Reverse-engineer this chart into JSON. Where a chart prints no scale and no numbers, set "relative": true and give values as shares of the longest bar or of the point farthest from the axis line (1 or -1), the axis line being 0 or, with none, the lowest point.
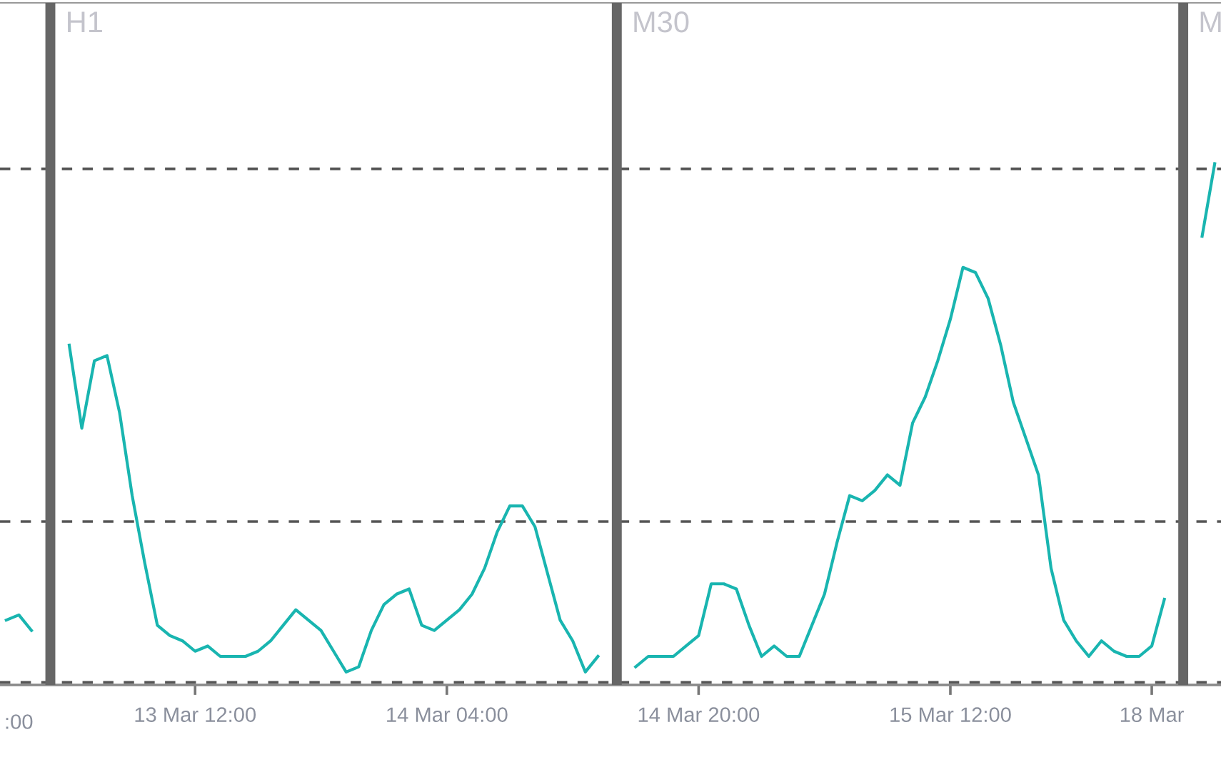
{
  "chart_data": {
    "type": "line",
    "relative": true,
    "categories": [
      null,
      null,
      null,
      null,
      null,
      null,
      null,
      null,
      null,
      null,
      null,
      null,
      null,
      null,
      null,
      "13 Mar 12:00",
      null,
      null,
      null,
      null,
      null,
      null,
      null,
      null,
      null,
      null,
      null,
      null,
      null,
      null,
      null,
      null,
      null,
      null,
      null,
      "14 Mar 04:00",
      null,
      null,
      null,
      null,
      null,
      null,
      null,
      null,
      null,
      null,
      null,
      null,
      null,
      null,
      null,
      null,
      null,
      null,
      null,
      "14 Mar 20:00",
      null,
      null,
      null,
      null,
      null,
      null,
      null,
      null,
      null,
      null,
      null,
      null,
      null,
      null,
      null,
      null,
      null,
      null,
      null,
      "15 Mar 12:00",
      null,
      null,
      null,
      null,
      null,
      null,
      null,
      null,
      null,
      null,
      null,
      null,
      null,
      null,
      null,
      "18 Mar",
      null,
      null,
      null,
      null,
      null
    ],
    "series": [
      {
        "color": "#19b5b0",
        "values": [
          0.12,
          0.13,
          0.1,
          null,
          null,
          null,
          null,
          null,
          null,
          null,
          null,
          null,
          null,
          null,
          null,
          null,
          null,
          null,
          null,
          null,
          null,
          null,
          null,
          null,
          null,
          null,
          null,
          null,
          null,
          null,
          null,
          null,
          null,
          null,
          null,
          null,
          null,
          null,
          null,
          null,
          null,
          null,
          null,
          null,
          null,
          null,
          null,
          null,
          null,
          null,
          null,
          null,
          null,
          null,
          null,
          null,
          null,
          null,
          null,
          null,
          null,
          null,
          null,
          null,
          null,
          null,
          null,
          null,
          null,
          null,
          null,
          null,
          null,
          null,
          null,
          null,
          null,
          null,
          null,
          null,
          null,
          null,
          null,
          null,
          null,
          null,
          null,
          null,
          null,
          null,
          null,
          null,
          null,
          null,
          null,
          null,
          null
        ]
      },
      {
        "color": "#19b5b0",
        "values": [
          null,
          null,
          null,
          null,
          null,
          0.65,
          0.49,
          0.62,
          0.63,
          0.52,
          0.36,
          0.23,
          0.11,
          0.09,
          0.08,
          0.06,
          0.07,
          0.05,
          0.05,
          0.05,
          0.06,
          0.08,
          0.11,
          0.14,
          0.12,
          0.1,
          0.06,
          0.02,
          0.03,
          0.1,
          0.15,
          0.17,
          0.18,
          0.11,
          0.1,
          0.12,
          0.14,
          0.17,
          0.22,
          0.29,
          0.34,
          0.34,
          0.3,
          0.21,
          0.12,
          0.08,
          0.02,
          0.05,
          null,
          null,
          null,
          null,
          null,
          null,
          null,
          null,
          null,
          null,
          null,
          null,
          null,
          null,
          null,
          null,
          null,
          null,
          null,
          null,
          null,
          null,
          null,
          null,
          null,
          null,
          null,
          null,
          null,
          null,
          null,
          null,
          null,
          null,
          null,
          null,
          null,
          null,
          null,
          null,
          null,
          null,
          null,
          null,
          null,
          null,
          null,
          null,
          null
        ]
      },
      {
        "color": "#19b5b0",
        "values": [
          null,
          null,
          null,
          null,
          null,
          null,
          null,
          null,
          null,
          null,
          null,
          null,
          null,
          null,
          null,
          null,
          null,
          null,
          null,
          null,
          null,
          null,
          null,
          null,
          null,
          null,
          null,
          null,
          null,
          null,
          null,
          null,
          null,
          null,
          null,
          null,
          null,
          null,
          null,
          null,
          null,
          null,
          null,
          null,
          null,
          null,
          null,
          null,
          null,
          null,
          0.03,
          0.05,
          0.05,
          0.05,
          0.07,
          0.09,
          0.19,
          0.19,
          0.18,
          0.11,
          0.05,
          0.07,
          0.05,
          0.05,
          0.11,
          0.17,
          0.27,
          0.36,
          0.35,
          0.37,
          0.4,
          0.38,
          0.5,
          0.55,
          0.62,
          0.7,
          0.8,
          0.79,
          0.74,
          0.65,
          0.54,
          0.47,
          0.4,
          0.22,
          0.12,
          0.08,
          0.05,
          0.08,
          0.06,
          0.05,
          0.05,
          0.07,
          0.16,
          null,
          null,
          null,
          null
        ]
      },
      {
        "color": "#19b5b0",
        "values": [
          null,
          null,
          null,
          null,
          null,
          null,
          null,
          null,
          null,
          null,
          null,
          null,
          null,
          null,
          null,
          null,
          null,
          null,
          null,
          null,
          null,
          null,
          null,
          null,
          null,
          null,
          null,
          null,
          null,
          null,
          null,
          null,
          null,
          null,
          null,
          null,
          null,
          null,
          null,
          null,
          null,
          null,
          null,
          null,
          null,
          null,
          null,
          null,
          null,
          null,
          null,
          null,
          null,
          null,
          null,
          null,
          null,
          null,
          null,
          null,
          null,
          null,
          null,
          null,
          null,
          null,
          null,
          null,
          null,
          null,
          null,
          null,
          null,
          null,
          null,
          null,
          null,
          null,
          null,
          null,
          null,
          null,
          null,
          null,
          null,
          null,
          null,
          null,
          null,
          null,
          null,
          null,
          null,
          null,
          null,
          0.86,
          1.0
        ]
      }
    ],
    "ref_lines": [
      {
        "axis": "y",
        "value": 0.99,
        "color": "#555555",
        "line_style": "dashed"
      },
      {
        "axis": "y",
        "value": 0.31,
        "color": "#555555",
        "line_style": "dashed"
      },
      {
        "axis": "y",
        "value": 0,
        "color": "#555555",
        "line_style": "dashed"
      }
    ],
    "annotations": [
      ":00",
      "H1",
      "M30",
      "M"
    ]
  }
}
